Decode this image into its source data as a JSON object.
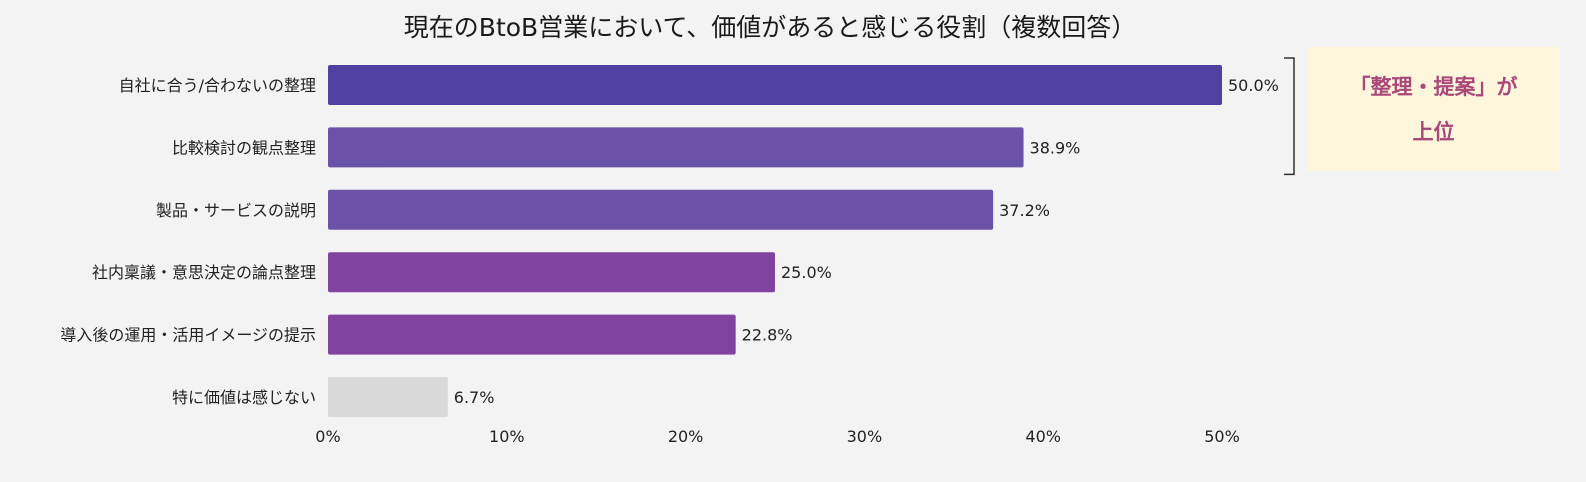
{
  "chart_data": {
    "type": "bar",
    "orientation": "horizontal",
    "title": "現在のBtoB営業において、価値があると感じる役割（複数回答）",
    "categories": [
      "自社に合う/合わないの整理",
      "比較検討の観点整理",
      "製品・サービスの説明",
      "社内稟議・意思決定の論点整理",
      "導入後の運用・活用イメージの提示",
      "特に価値は感じない"
    ],
    "values": [
      50.0,
      38.9,
      37.2,
      25.0,
      22.8,
      6.7
    ],
    "value_labels": [
      "50.0%",
      "38.9%",
      "37.2%",
      "25.0%",
      "22.8%",
      "6.7%"
    ],
    "bar_colors": [
      "#5040a0",
      "#6a52a8",
      "#6a52a8",
      "#8142a0",
      "#8142a0",
      "#d9d9d9"
    ],
    "xlim": [
      0,
      50
    ],
    "xticks": [
      "0%",
      "10%",
      "20%",
      "30%",
      "40%",
      "50%"
    ],
    "grid": false,
    "annotation": {
      "bracket_covers": [
        "自社に合う/合わないの整理",
        "比較検討の観点整理"
      ],
      "lines": [
        "「整理・提案」が",
        "上位"
      ],
      "text_color": "#a8497a",
      "box_color": "#fdf5dc"
    }
  }
}
